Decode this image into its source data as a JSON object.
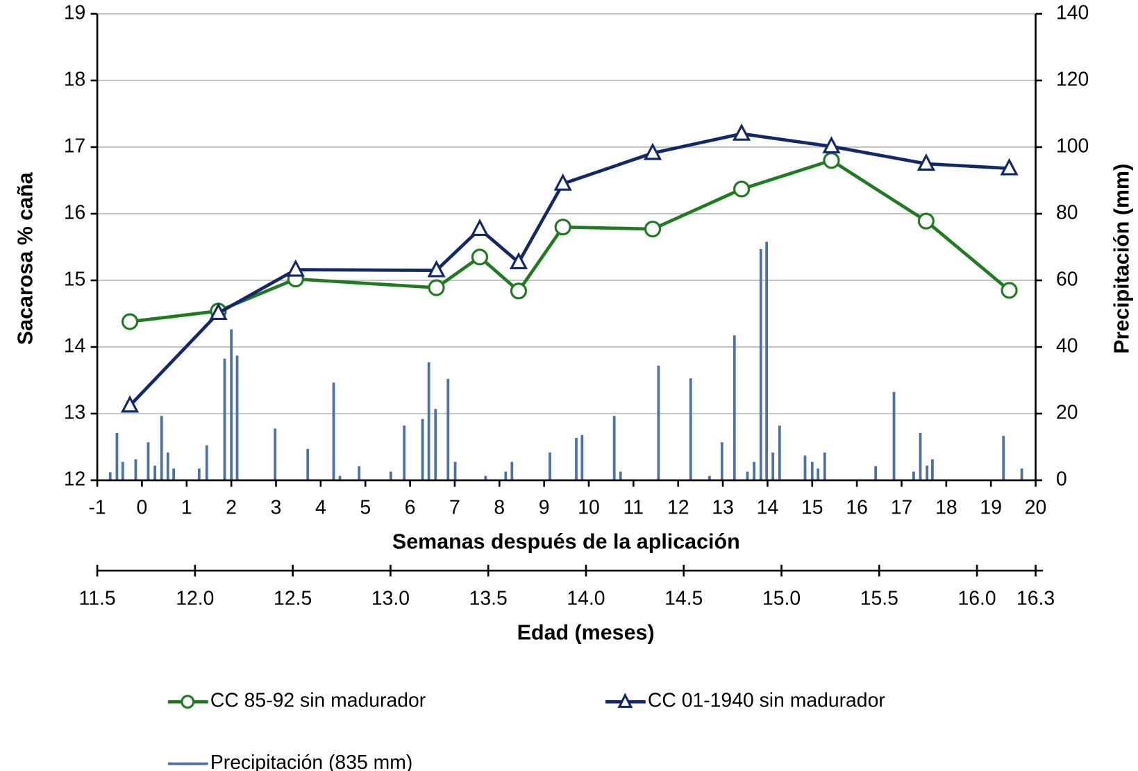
{
  "chart_data": {
    "type": "line",
    "xlabel": "Semanas después de la aplicación",
    "ylabel": "Sacarosa % caña",
    "y2label": "Precipitación (mm)",
    "x2label": "Edad (meses)",
    "xlim": [
      -1,
      20
    ],
    "xticks": [
      -1,
      0,
      1,
      2,
      3,
      4,
      5,
      6,
      7,
      8,
      9,
      10,
      11,
      12,
      13,
      14,
      15,
      16,
      17,
      18,
      19,
      20
    ],
    "ylim": [
      12,
      19
    ],
    "yticks": [
      12,
      13,
      14,
      15,
      16,
      17,
      18,
      19
    ],
    "y2lim": [
      0,
      140
    ],
    "y2ticks": [
      0,
      20,
      40,
      60,
      80,
      100,
      120,
      140
    ],
    "x2lim": [
      11.5,
      16.3
    ],
    "x2ticks": [
      11.5,
      {
        "value": 12,
        "label": "12.0"
      },
      12.5,
      {
        "value": 13,
        "label": "13.0"
      },
      13.5,
      {
        "value": 14,
        "label": "14.0"
      },
      14.5,
      {
        "value": 15,
        "label": "15.0"
      },
      15.5,
      {
        "value": 16,
        "label": "16.0"
      },
      16.3
    ],
    "grid": true,
    "legend": "bottom",
    "series": [
      {
        "name": "CC 85-92 sin madurador",
        "type": "line",
        "marker": "circle",
        "color": "#1e7b1e",
        "x": [
          -0.27,
          1.71,
          3.44,
          6.59,
          7.56,
          8.43,
          9.42,
          11.43,
          13.42,
          15.43,
          17.55,
          19.41
        ],
        "values": [
          14.38,
          14.54,
          15.02,
          14.89,
          15.35,
          14.84,
          15.8,
          15.77,
          16.37,
          16.8,
          15.89,
          14.85
        ]
      },
      {
        "name": "CC 01-1940 sin madurador",
        "type": "line",
        "marker": "triangle",
        "color": "#12286b",
        "x": [
          -0.27,
          1.71,
          3.44,
          6.59,
          7.56,
          8.43,
          9.42,
          11.43,
          13.42,
          15.43,
          17.55,
          19.41
        ],
        "values": [
          13.12,
          14.51,
          15.16,
          15.15,
          15.77,
          15.27,
          16.45,
          16.91,
          17.2,
          17.01,
          16.75,
          16.68
        ]
      },
      {
        "name": "Precipitación (835 mm)",
        "type": "bar",
        "axis": "y2",
        "color": "#4a72aa",
        "x": [
          -0.71,
          -0.56,
          -0.43,
          -0.14,
          0.14,
          0.29,
          0.44,
          0.58,
          0.71,
          1.28,
          1.45,
          1.85,
          2.0,
          2.13,
          2.98,
          3.71,
          4.29,
          4.43,
          4.86,
          5.57,
          5.87,
          6.28,
          6.42,
          6.57,
          6.85,
          7.01,
          7.69,
          8.14,
          8.28,
          9.13,
          9.72,
          9.85,
          10.57,
          10.71,
          11.56,
          12.28,
          12.7,
          12.98,
          13.26,
          13.55,
          13.7,
          13.85,
          13.98,
          14.12,
          14.27,
          14.84,
          15.0,
          15.13,
          15.28,
          16.42,
          16.83,
          17.27,
          17.42,
          17.57,
          17.69,
          19.28,
          19.69
        ],
        "values": [
          2.4,
          14.2,
          5.5,
          6.3,
          11.4,
          4.4,
          19.3,
          8.3,
          3.5,
          3.5,
          10.5,
          36.5,
          45.3,
          37.4,
          15.5,
          9.4,
          29.3,
          1.3,
          4.2,
          2.6,
          16.4,
          18.4,
          35.4,
          21.4,
          30.4,
          5.5,
          1.3,
          2.6,
          5.5,
          8.3,
          12.7,
          13.6,
          19.3,
          2.6,
          34.4,
          30.6,
          1.3,
          11.4,
          43.5,
          2.6,
          5.5,
          69.4,
          71.6,
          8.3,
          16.4,
          7.4,
          5.5,
          3.5,
          8.3,
          4.2,
          26.5,
          2.6,
          14.2,
          4.4,
          6.3,
          13.3,
          3.5
        ]
      }
    ]
  }
}
